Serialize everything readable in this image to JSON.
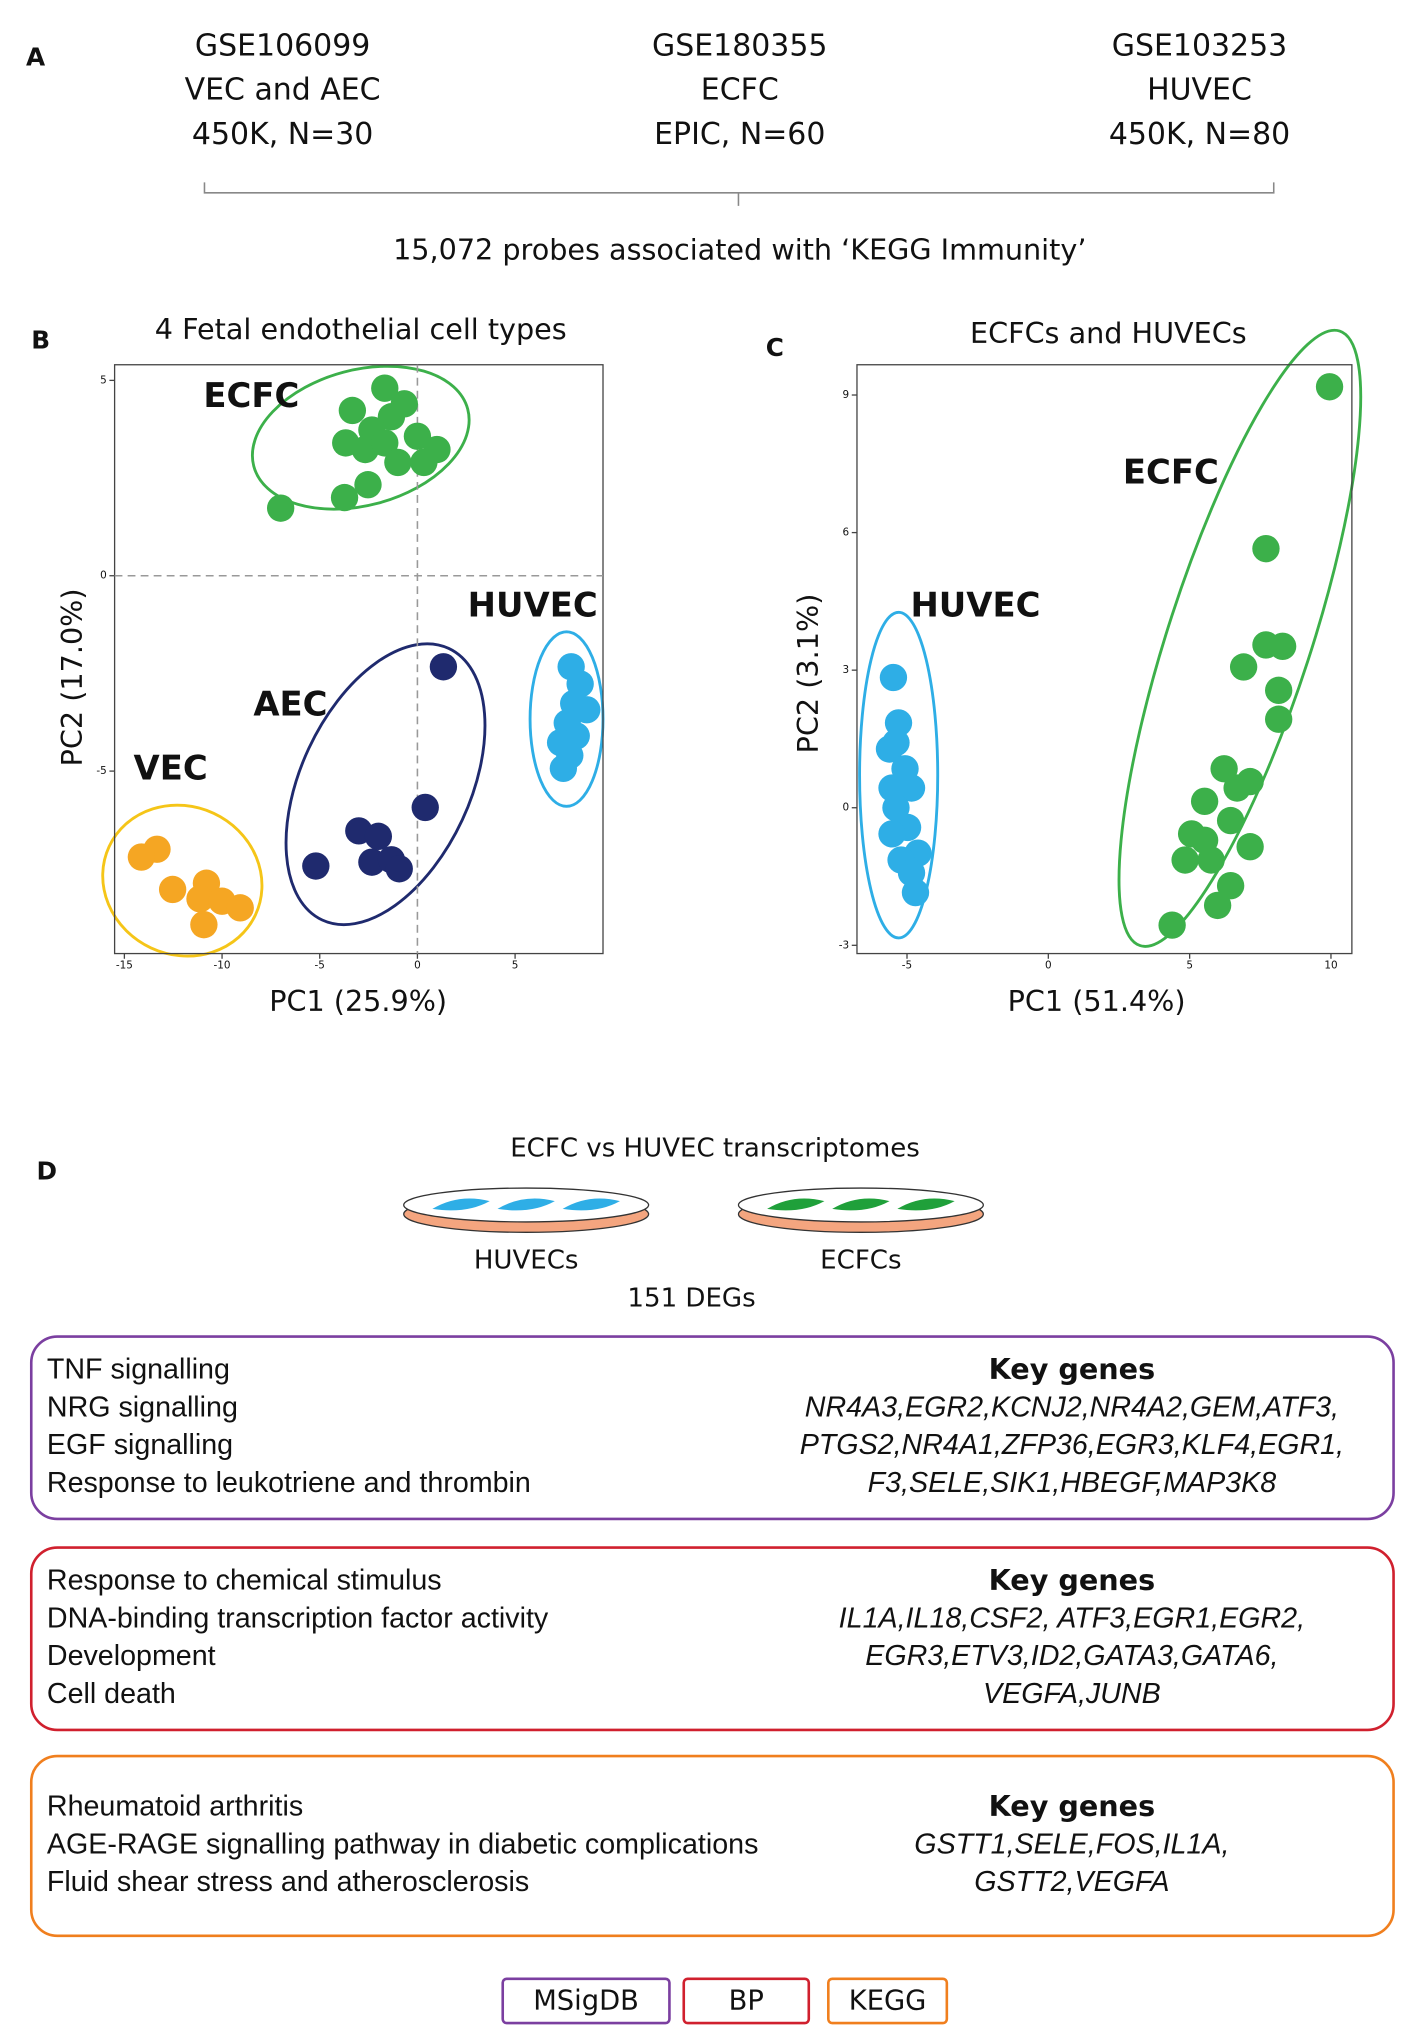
{
  "panel_labels": [
    "A",
    "B",
    "C",
    "D"
  ],
  "datasets": [
    {
      "id": "GSE106099",
      "cells": "VEC and AEC",
      "platform": "450K, N=30"
    },
    {
      "id": "GSE180355",
      "cells": "ECFC",
      "platform": "EPIC, N=60"
    },
    {
      "id": "GSE103253",
      "cells": "HUVEC",
      "platform": "450K, N=80"
    }
  ],
  "probes_note": "15,072 probes associated with ‘KEGG Immunity’",
  "charts": [
    {
      "type": "scatter",
      "title": "4 Fetal endothelial cell types",
      "xlabel": "PC1 (25.9%)",
      "ylabel": "PC2 (17.0%)",
      "xlim": [
        -15.5,
        9.5
      ],
      "ylim": [
        -9.67,
        5.4
      ],
      "xticks": [
        -15,
        -10,
        -5,
        0,
        5
      ],
      "yticks": [
        5,
        0,
        -5
      ],
      "zero_lines": true,
      "series": [
        {
          "name": "ECFC",
          "color": "#3cb04a",
          "x": [
            -1.67,
            -3.33,
            -1.33,
            -0.67,
            -2.33,
            -3.67,
            -2.67,
            -1.67,
            0,
            1,
            -1,
            0.33,
            -2.53,
            -3.73,
            -7
          ],
          "y": [
            4.8,
            4.23,
            4.07,
            4.4,
            3.73,
            3.4,
            3.23,
            3.4,
            3.57,
            3.23,
            2.9,
            2.9,
            2.33,
            2,
            1.73
          ]
        },
        {
          "name": "HUVEC",
          "color": "#2eaee6",
          "x": [
            7.87,
            8.33,
            8,
            8.67,
            7.67,
            8.13,
            7.33,
            7.8,
            7.47
          ],
          "y": [
            -2.33,
            -2.77,
            -3.27,
            -3.43,
            -3.77,
            -4.1,
            -4.27,
            -4.6,
            -4.93
          ]
        },
        {
          "name": "AEC",
          "color": "#1f2a6e",
          "x": [
            1.33,
            0.4,
            -3,
            -2,
            -2.33,
            -1.33,
            -0.93,
            -5.2
          ],
          "y": [
            -2.33,
            -5.93,
            -6.53,
            -6.67,
            -7.33,
            -7.27,
            -7.5,
            -7.43
          ]
        },
        {
          "name": "VEC",
          "color": "#f5a623",
          "x": [
            -13.33,
            -14.13,
            -12.53,
            -10.8,
            -11.13,
            -10,
            -9.07,
            -10.93
          ],
          "y": [
            -7,
            -7.2,
            -8.03,
            -7.87,
            -8.27,
            -8.33,
            -8.5,
            -8.93
          ]
        }
      ]
    },
    {
      "type": "scatter",
      "title": "ECFCs and HUVECs",
      "xlabel": "PC1 (51.4%)",
      "ylabel": "PC2 (3.1%)",
      "xlim": [
        -6.77,
        10.74
      ],
      "ylim": [
        -3.18,
        9.66
      ],
      "xticks": [
        -5,
        0,
        5,
        10
      ],
      "yticks": [
        -3,
        0,
        3,
        6,
        9
      ],
      "zero_lines": false,
      "series": [
        {
          "name": "HUVEC",
          "color": "#2eaee6",
          "x": [
            -5.48,
            -5.3,
            -5.62,
            -5.07,
            -5.53,
            -4.84,
            -5.39,
            -4.98,
            -5.53,
            -4.61,
            -5.21,
            -4.84,
            -4.7,
            -5.39
          ],
          "y": [
            2.84,
            1.85,
            1.28,
            0.85,
            0.43,
            0.43,
            0,
            -0.43,
            -0.57,
            -0.99,
            -1.14,
            -1.42,
            -1.85,
            1.42
          ]
        },
        {
          "name": "ECFC",
          "color": "#3cb04a",
          "x": [
            9.95,
            7.7,
            7.7,
            8.29,
            6.91,
            8.15,
            8.15,
            6.22,
            7.14,
            5.53,
            6.45,
            5.07,
            7.14,
            5.76,
            4.84,
            6.45,
            5.99,
            4.38,
            6.68,
            5.53
          ],
          "y": [
            9.18,
            5.65,
            3.55,
            3.52,
            3.07,
            2.56,
            1.93,
            0.85,
            0.57,
            0.14,
            -0.28,
            -0.57,
            -0.85,
            -1.14,
            -1.14,
            -1.7,
            -2.13,
            -2.56,
            0.43,
            -0.71
          ]
        }
      ]
    }
  ],
  "comparison": {
    "title": "ECFC vs HUVEC transcriptomes",
    "left": "HUVECs",
    "right": "ECFCs",
    "degs": "151 DEGs"
  },
  "boxes": [
    {
      "source": "MSigDB",
      "color": "#7b3fa0",
      "terms": [
        "TNF signalling",
        "NRG signalling",
        "EGF signalling",
        "Response to leukotriene and thrombin"
      ],
      "genes_heading": "Key genes",
      "genes": [
        "NR4A3,EGR2,KCNJ2,NR4A2,GEM,ATF3,",
        "PTGS2,NR4A1,ZFP36,EGR3,KLF4,EGR1,",
        "F3,SELE,SIK1,HBEGF,MAP3K8"
      ]
    },
    {
      "source": "BP",
      "color": "#d0202e",
      "terms": [
        "Response to chemical stimulus",
        "DNA-binding transcription factor activity",
        "Development",
        "Cell death"
      ],
      "genes_heading": "Key genes",
      "genes": [
        "IL1A,IL18,CSF2, ATF3,EGR1,EGR2,",
        "EGR3,ETV3,ID2,GATA3,GATA6,",
        "VEGFA,JUNB"
      ]
    },
    {
      "source": "KEGG",
      "color": "#f07f1e",
      "terms": [
        "Rheumatoid arthritis",
        "AGE-RAGE signalling pathway in diabetic complications",
        "Fluid shear stress and atherosclerosis"
      ],
      "genes_heading": "Key genes",
      "genes": [
        "GSTT1,SELE,FOS,IL1A,",
        "GSTT2,VEGFA"
      ]
    }
  ]
}
